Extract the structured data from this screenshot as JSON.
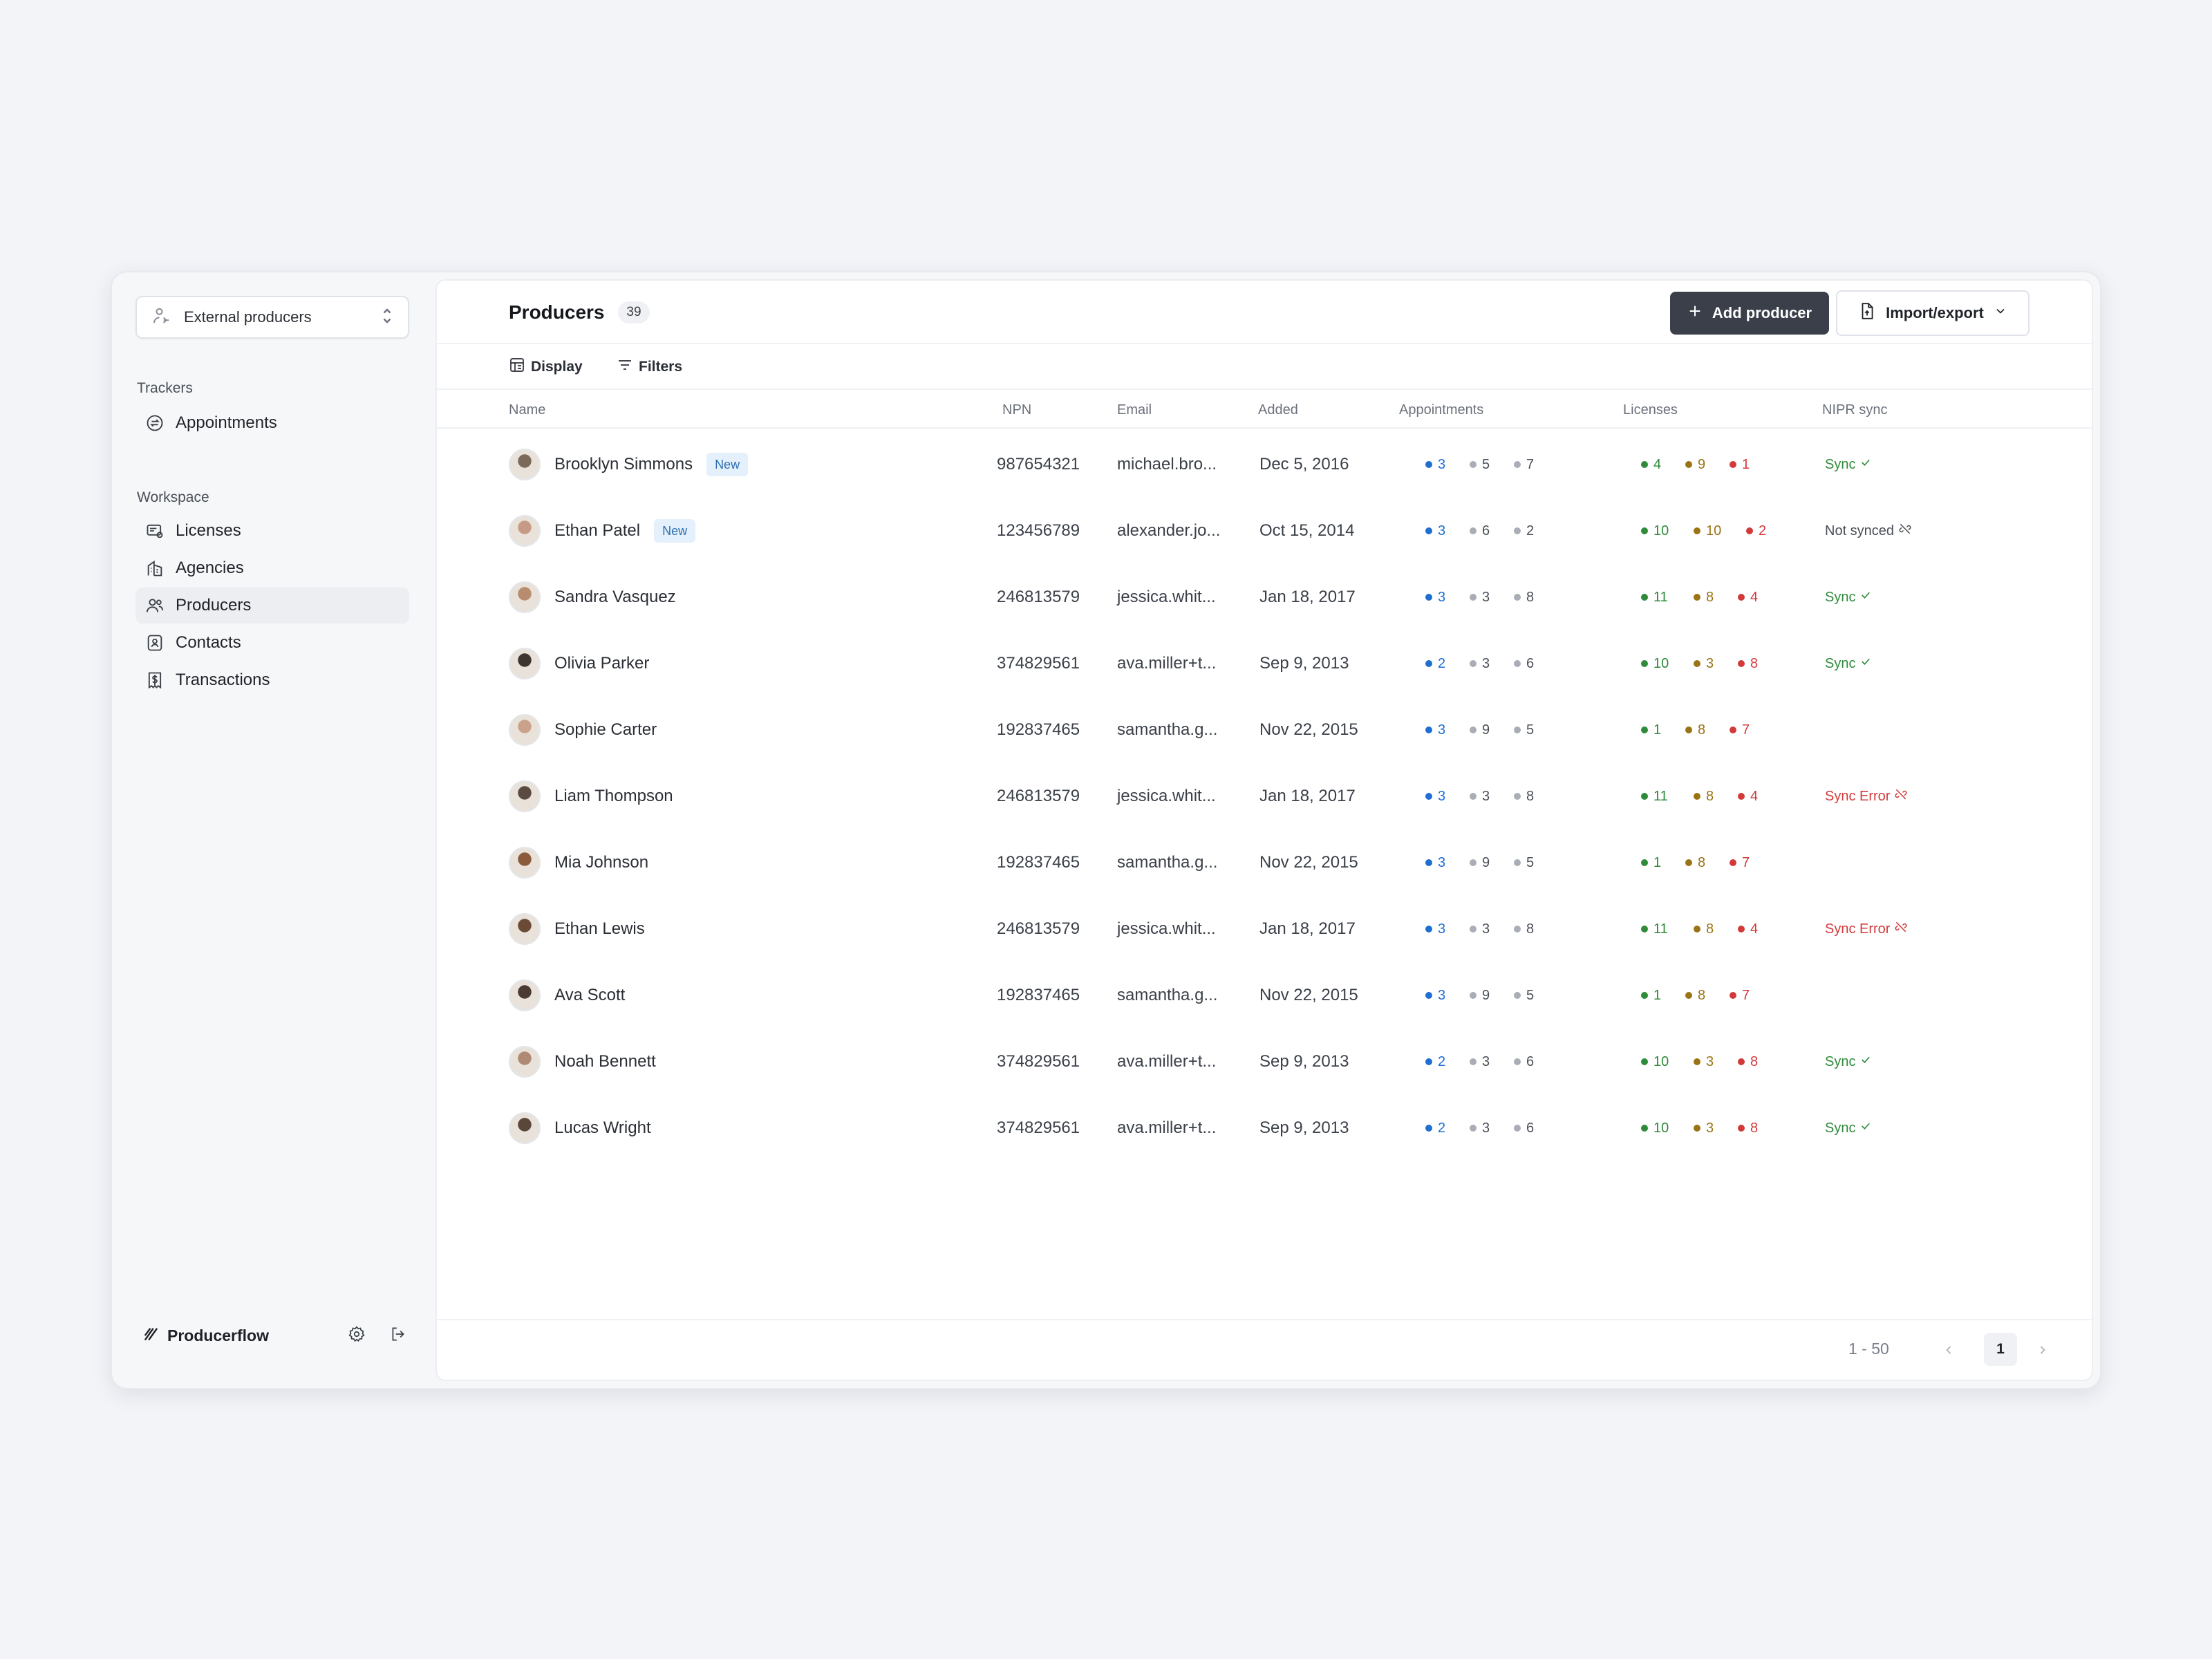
{
  "workspace": {
    "label": "External producers"
  },
  "sidebar": {
    "trackers_title": "Trackers",
    "trackers": [
      {
        "label": "Appointments",
        "icon": "refresh-circle-icon"
      }
    ],
    "workspace_title": "Workspace",
    "items": [
      {
        "label": "Licenses",
        "icon": "license-icon"
      },
      {
        "label": "Agencies",
        "icon": "building-icon"
      },
      {
        "label": "Producers",
        "icon": "users-icon",
        "active": true
      },
      {
        "label": "Contacts",
        "icon": "contact-card-icon"
      },
      {
        "label": "Transactions",
        "icon": "receipt-dollar-icon"
      }
    ],
    "brand": "Producerflow"
  },
  "header": {
    "title": "Producers",
    "count": "39",
    "add_label": "Add producer",
    "import_label": "Import/export"
  },
  "toolbar": {
    "display_label": "Display",
    "filters_label": "Filters"
  },
  "table": {
    "columns": {
      "name": "Name",
      "npn": "NPN",
      "email": "Email",
      "added": "Added",
      "appointments": "Appointments",
      "licenses": "Licenses",
      "nipr": "NIPR sync"
    },
    "rows": [
      {
        "name": "Brooklyn Simmons",
        "badge": "New",
        "npn": "987654321",
        "email": "michael.bro...",
        "added": "Dec 5, 2016",
        "appt": [
          "3",
          "5",
          "7"
        ],
        "lic": [
          "4",
          "9",
          "1"
        ],
        "sync": "Sync",
        "sync_status": "ok"
      },
      {
        "name": "Ethan Patel",
        "badge": "New",
        "npn": "123456789",
        "email": "alexander.jo...",
        "added": "Oct 15, 2014",
        "appt": [
          "3",
          "6",
          "2"
        ],
        "lic": [
          "10",
          "10",
          "2"
        ],
        "sync": "Not synced",
        "sync_status": "none"
      },
      {
        "name": "Sandra Vasquez",
        "badge": "",
        "npn": "246813579",
        "email": "jessica.whit...",
        "added": "Jan 18, 2017",
        "appt": [
          "3",
          "3",
          "8"
        ],
        "lic": [
          "11",
          "8",
          "4"
        ],
        "sync": "Sync",
        "sync_status": "ok"
      },
      {
        "name": "Olivia Parker",
        "badge": "",
        "npn": "374829561",
        "email": "ava.miller+t...",
        "added": "Sep 9, 2013",
        "appt": [
          "2",
          "3",
          "6"
        ],
        "lic": [
          "10",
          "3",
          "8"
        ],
        "sync": "Sync",
        "sync_status": "ok"
      },
      {
        "name": "Sophie Carter",
        "badge": "",
        "npn": "192837465",
        "email": "samantha.g...",
        "added": "Nov 22, 2015",
        "appt": [
          "3",
          "9",
          "5"
        ],
        "lic": [
          "1",
          "8",
          "7"
        ],
        "sync": "",
        "sync_status": ""
      },
      {
        "name": "Liam Thompson",
        "badge": "",
        "npn": "246813579",
        "email": "jessica.whit...",
        "added": "Jan 18, 2017",
        "appt": [
          "3",
          "3",
          "8"
        ],
        "lic": [
          "11",
          "8",
          "4"
        ],
        "sync": "Sync Error",
        "sync_status": "error"
      },
      {
        "name": "Mia Johnson",
        "badge": "",
        "npn": "192837465",
        "email": "samantha.g...",
        "added": "Nov 22, 2015",
        "appt": [
          "3",
          "9",
          "5"
        ],
        "lic": [
          "1",
          "8",
          "7"
        ],
        "sync": "",
        "sync_status": ""
      },
      {
        "name": "Ethan Lewis",
        "badge": "",
        "npn": "246813579",
        "email": "jessica.whit...",
        "added": "Jan 18, 2017",
        "appt": [
          "3",
          "3",
          "8"
        ],
        "lic": [
          "11",
          "8",
          "4"
        ],
        "sync": "Sync Error",
        "sync_status": "error"
      },
      {
        "name": "Ava Scott",
        "badge": "",
        "npn": "192837465",
        "email": "samantha.g...",
        "added": "Nov 22, 2015",
        "appt": [
          "3",
          "9",
          "5"
        ],
        "lic": [
          "1",
          "8",
          "7"
        ],
        "sync": "",
        "sync_status": ""
      },
      {
        "name": "Noah Bennett",
        "badge": "",
        "npn": "374829561",
        "email": "ava.miller+t...",
        "added": "Sep 9, 2013",
        "appt": [
          "2",
          "3",
          "6"
        ],
        "lic": [
          "10",
          "3",
          "8"
        ],
        "sync": "Sync",
        "sync_status": "ok"
      },
      {
        "name": "Lucas Wright",
        "badge": "",
        "npn": "374829561",
        "email": "ava.miller+t...",
        "added": "Sep 9, 2013",
        "appt": [
          "2",
          "3",
          "6"
        ],
        "lic": [
          "10",
          "3",
          "8"
        ],
        "sync": "Sync",
        "sync_status": "ok"
      }
    ]
  },
  "pagination": {
    "range": "1 - 50",
    "page": "1"
  },
  "colors": {
    "appt": [
      "#1f6fd1",
      "#a9adb5",
      "#a9adb5"
    ],
    "appt_text": [
      "#1f6fd1",
      "#4a4f58",
      "#4a4f58"
    ],
    "lic": [
      "#2f8a3a",
      "#9a7414",
      "#d23a3a"
    ],
    "sync_ok": "#2f8a3a",
    "sync_error": "#d23a3a",
    "sync_none": "#4a4f58"
  }
}
